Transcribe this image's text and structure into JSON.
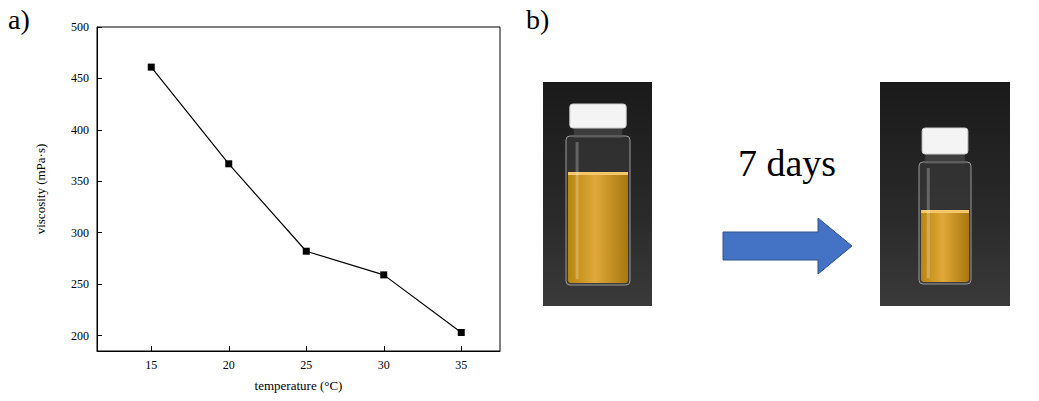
{
  "panel_labels": [
    "a)",
    "b)"
  ],
  "chart_data": {
    "type": "line",
    "x_label": "temperature (°C)",
    "y_label": "viscosity (mPa·s)",
    "x": [
      15,
      20,
      25,
      30,
      35
    ],
    "values": [
      461,
      367,
      282,
      259,
      203
    ],
    "color": "#000000",
    "marker": "square",
    "line_style": "solid",
    "xlim": [
      11.5,
      37.5
    ],
    "xticks": [
      15,
      20,
      25,
      30,
      35
    ],
    "ylim": [
      185,
      500
    ],
    "yticks": [
      200,
      250,
      300,
      350,
      400,
      450,
      500
    ],
    "grid": false
  },
  "photo_panel": {
    "arrow_label": "7 days"
  }
}
